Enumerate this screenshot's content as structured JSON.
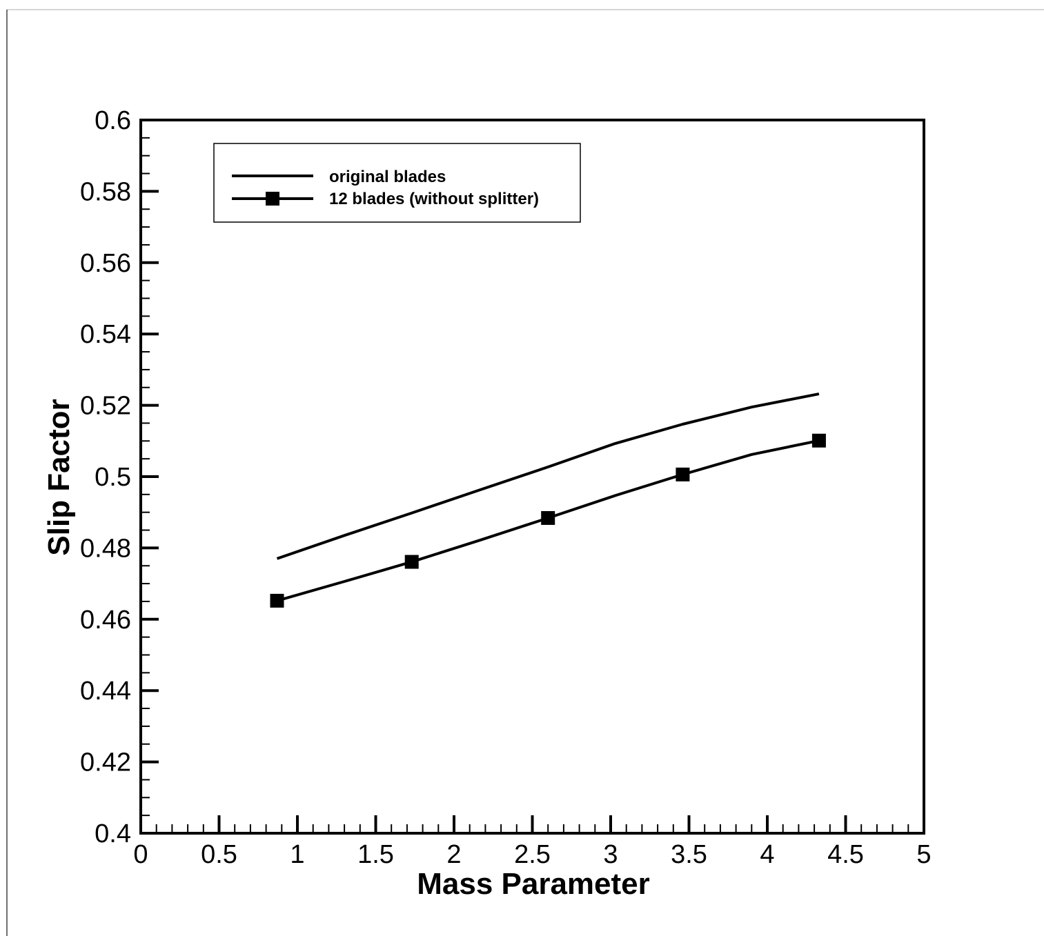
{
  "chart_data": {
    "type": "line",
    "xlabel": "Mass Parameter",
    "ylabel": "Slip Factor",
    "xlim": [
      0,
      5
    ],
    "ylim": [
      0.4,
      0.6
    ],
    "x_ticks": [
      "0",
      "0.5",
      "1",
      "1.5",
      "2",
      "2.5",
      "3",
      "3.5",
      "4",
      "4.5",
      "5"
    ],
    "y_ticks": [
      "0.4",
      "0.42",
      "0.44",
      "0.46",
      "0.48",
      "0.5",
      "0.52",
      "0.54",
      "0.56",
      "0.58",
      "0.6"
    ],
    "grid": false,
    "legend_position": "top-left",
    "series": [
      {
        "name": "original blades",
        "marker": "none",
        "color": "#000000",
        "x": [
          0.87,
          1.3,
          1.73,
          2.16,
          2.6,
          3.03,
          3.46,
          3.9,
          4.33
        ],
        "y": [
          0.477,
          0.4835,
          0.4898,
          0.4962,
          0.5027,
          0.5093,
          0.5147,
          0.5195,
          0.5232
        ]
      },
      {
        "name": "12 blades (without splitter)",
        "marker": "square",
        "color": "#000000",
        "x": [
          0.87,
          1.3,
          1.73,
          2.16,
          2.6,
          3.03,
          3.46,
          3.9,
          4.33
        ],
        "y": [
          0.4652,
          0.4706,
          0.4761,
          0.4821,
          0.4884,
          0.4947,
          0.5006,
          0.5062,
          0.5101
        ],
        "marker_x": [
          0.87,
          1.73,
          2.6,
          3.46,
          4.33
        ],
        "marker_y": [
          0.4652,
          0.4761,
          0.4884,
          0.5006,
          0.5101
        ]
      }
    ]
  }
}
